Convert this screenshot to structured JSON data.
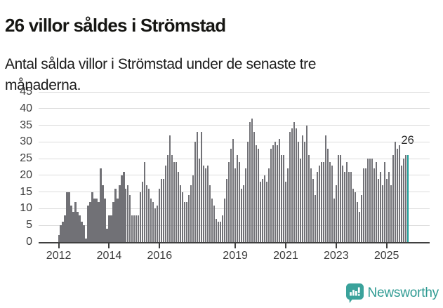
{
  "header": {
    "title": "26 villor såldes i Strömstad",
    "subtitle_line1": "Antal sålda villor i Strömstad under de senaste tre",
    "subtitle_line2": "månaderna."
  },
  "chart_data": {
    "type": "bar",
    "title": "26 villor såldes i Strömstad",
    "subtitle": "Antal sålda villor i Strömstad under de senaste tre månaderna.",
    "start_month": "2012-01",
    "end_month": "2025-11",
    "values": [
      2,
      5,
      6,
      8,
      15,
      15,
      11,
      9,
      12,
      9,
      8,
      6,
      5,
      1,
      11,
      12,
      15,
      13,
      13,
      12,
      22,
      17,
      13,
      4,
      8,
      8,
      12,
      16,
      13,
      17,
      20,
      21,
      16,
      17,
      14,
      8,
      8,
      8,
      8,
      15,
      18,
      24,
      17,
      16,
      13,
      12,
      10,
      11,
      16,
      19,
      19,
      23,
      26,
      32,
      26,
      24,
      24,
      21,
      17,
      15,
      12,
      12,
      14,
      17,
      20,
      30,
      33,
      25,
      33,
      23,
      22,
      23,
      17,
      13,
      11,
      7,
      6,
      6,
      8,
      13,
      19,
      24,
      28,
      31,
      22,
      26,
      24,
      16,
      17,
      22,
      30,
      36,
      37,
      33,
      29,
      28,
      18,
      19,
      20,
      18,
      22,
      28,
      29,
      30,
      29,
      31,
      26,
      26,
      18,
      22,
      33,
      34,
      36,
      34,
      30,
      25,
      32,
      30,
      35,
      26,
      22,
      19,
      14,
      21,
      23,
      24,
      24,
      32,
      28,
      24,
      23,
      13,
      17,
      26,
      26,
      23,
      21,
      24,
      21,
      21,
      16,
      15,
      12,
      9,
      14,
      22,
      22,
      25,
      25,
      25,
      22,
      24,
      19,
      21,
      17,
      24,
      19,
      21,
      17,
      26,
      30,
      28,
      29,
      23,
      25,
      26,
      26
    ],
    "ylim": [
      0,
      45
    ],
    "y_ticks": [
      0,
      5,
      10,
      15,
      20,
      25,
      30,
      35,
      40,
      45
    ],
    "x_ticks": [
      {
        "label": "2012",
        "month_index": 0
      },
      {
        "label": "2014",
        "month_index": 24
      },
      {
        "label": "2016",
        "month_index": 48
      },
      {
        "label": "2019",
        "month_index": 84
      },
      {
        "label": "2021",
        "month_index": 108
      },
      {
        "label": "2023",
        "month_index": 132
      },
      {
        "label": "2025",
        "month_index": 156
      }
    ],
    "highlight": {
      "index": 166,
      "value": 26,
      "label": "26"
    },
    "grid": true,
    "legend": null,
    "colors": {
      "bar": "#717176",
      "highlight": "#1b9e98"
    }
  },
  "footer": {
    "brand": "Newsworthy",
    "logo_icon": "newsworthy-chart-speech-bubble-icon",
    "brand_color": "#2f9b93",
    "icon_color": "#3aa29b"
  }
}
